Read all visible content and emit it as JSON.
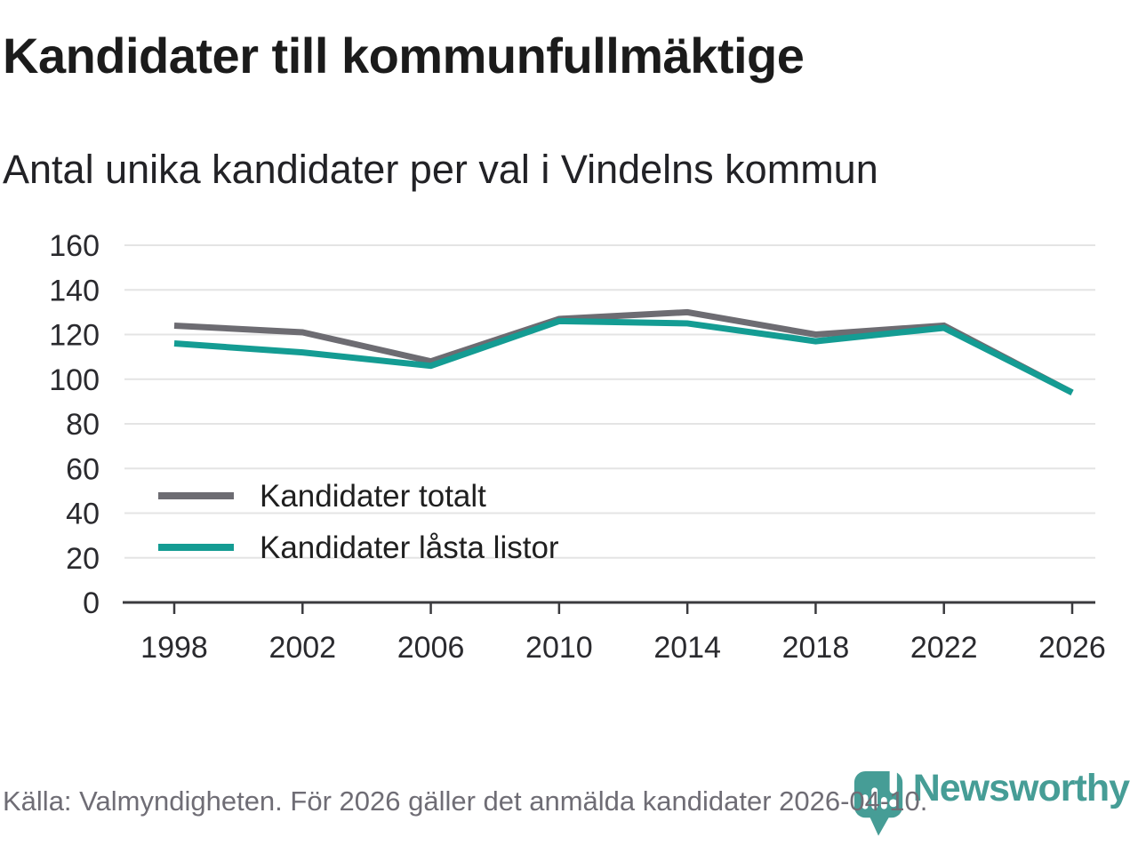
{
  "header": {
    "title": "Kandidater till kommunfullmäktige",
    "subtitle": "Antal unika kandidater per val i Vindelns kommun"
  },
  "footer": {
    "source": "Källa: Valmyndigheten. För 2026 gäller det anmälda kandidater 2026-04-10."
  },
  "branding": {
    "name": "Newsworthy",
    "color": "#469d96"
  },
  "theme": {
    "grid_color": "#e4e4e4",
    "axis_color": "#3a3a3e",
    "text_color": "#2a2a2e",
    "muted_color": "#6f6d75",
    "accent_color": "#149c93"
  },
  "chart_data": {
    "type": "line",
    "title": "Kandidater till kommunfullmäktige",
    "subtitle": "Antal unika kandidater per val i Vindelns kommun",
    "categories": [
      "1998",
      "2002",
      "2006",
      "2010",
      "2014",
      "2018",
      "2022",
      "2026"
    ],
    "series": [
      {
        "name": "Kandidater totalt",
        "color": "#6d6c72",
        "values": [
          124,
          121,
          108,
          127,
          130,
          120,
          124,
          94
        ]
      },
      {
        "name": "Kandidater låsta listor",
        "color": "#149c93",
        "values": [
          116,
          112,
          106,
          126,
          125,
          117,
          123,
          94
        ]
      }
    ],
    "xlabel": "",
    "ylabel": "",
    "ylim": [
      0,
      160
    ],
    "ytick_step": 20,
    "grid": true,
    "legend_position": "inside-bottom-left",
    "source": "Källa: Valmyndigheten. För 2026 gäller det anmälda kandidater 2026-04-10."
  }
}
